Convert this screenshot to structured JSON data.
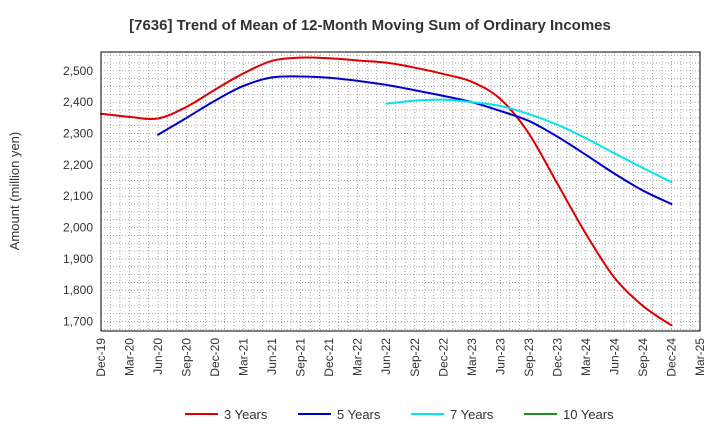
{
  "chart_data": {
    "type": "line",
    "title": "[7636]  Trend of Mean of 12-Month Moving Sum of Ordinary Incomes",
    "xlabel": "",
    "ylabel": "Amount (million yen)",
    "ylim": [
      1670,
      2560
    ],
    "yticks": [
      1700,
      1800,
      1900,
      2000,
      2100,
      2200,
      2300,
      2400,
      2500
    ],
    "ytick_labels": [
      "1,700",
      "1,800",
      "1,900",
      "2,000",
      "2,100",
      "2,200",
      "2,300",
      "2,400",
      "2,500"
    ],
    "categories": [
      "Dec-19",
      "Mar-20",
      "Jun-20",
      "Sep-20",
      "Dec-20",
      "Mar-21",
      "Jun-21",
      "Sep-21",
      "Dec-21",
      "Mar-22",
      "Jun-22",
      "Sep-22",
      "Dec-22",
      "Mar-23",
      "Jun-23",
      "Sep-23",
      "Dec-23",
      "Mar-24",
      "Jun-24",
      "Sep-24",
      "Dec-24",
      "Mar-25"
    ],
    "grid": true,
    "legend_position": "bottom",
    "series": [
      {
        "name": "3 Years",
        "color": "#dd0000",
        "values": [
          2363,
          2353,
          2348,
          2385,
          2440,
          2492,
          2532,
          2542,
          2540,
          2533,
          2526,
          2510,
          2490,
          2465,
          2410,
          2300,
          2140,
          1980,
          1840,
          1750,
          1688,
          null
        ]
      },
      {
        "name": "5 Years",
        "color": "#0000cc",
        "values": [
          null,
          null,
          2296,
          2350,
          2405,
          2452,
          2479,
          2482,
          2478,
          2468,
          2455,
          2438,
          2420,
          2400,
          2372,
          2340,
          2290,
          2232,
          2172,
          2118,
          2075,
          null
        ]
      },
      {
        "name": "7 Years",
        "color": "#00e5ee",
        "values": [
          null,
          null,
          null,
          null,
          null,
          null,
          null,
          null,
          null,
          null,
          2395,
          2405,
          2408,
          2400,
          2388,
          2362,
          2328,
          2285,
          2237,
          2190,
          2145,
          null
        ]
      },
      {
        "name": "10 Years",
        "color": "#228b22",
        "values": [
          null,
          null,
          null,
          null,
          null,
          null,
          null,
          null,
          null,
          null,
          null,
          null,
          null,
          null,
          null,
          null,
          null,
          null,
          null,
          null,
          null,
          null
        ]
      }
    ]
  }
}
